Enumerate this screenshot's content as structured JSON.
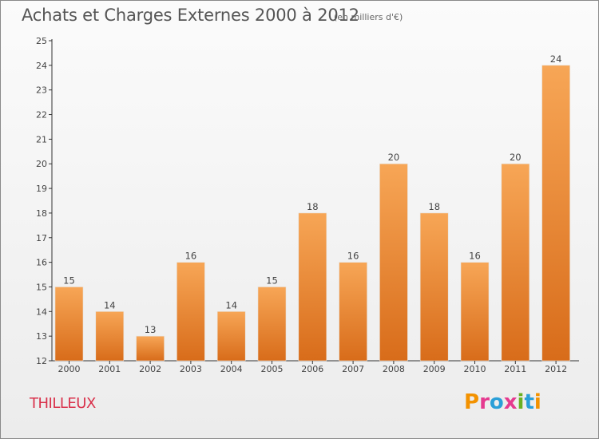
{
  "header": {
    "title": "Achats et Charges Externes 2000 à 2012",
    "unit": "(en milliers d'€)"
  },
  "footer": {
    "commune": "THILLEUX",
    "logo_text": "Proxiti"
  },
  "colors": {
    "bar_top": "#f7a656",
    "bar_bottom": "#d86c1a",
    "axis": "#333333",
    "label": "#444444",
    "commune": "#d9304a"
  },
  "chart_data": {
    "type": "bar",
    "title": "Achats et Charges Externes 2000 à 2012",
    "subtitle": "(en milliers d'€)",
    "categories": [
      "2000",
      "2001",
      "2002",
      "2003",
      "2004",
      "2005",
      "2006",
      "2007",
      "2008",
      "2009",
      "2010",
      "2011",
      "2012"
    ],
    "values": [
      15,
      14,
      13,
      16,
      14,
      15,
      18,
      16,
      20,
      18,
      16,
      20,
      24
    ],
    "ylim": [
      12,
      25
    ],
    "yticks": [
      12,
      13,
      14,
      15,
      16,
      17,
      18,
      19,
      20,
      21,
      22,
      23,
      24,
      25
    ],
    "grid": false,
    "data_labels": true
  }
}
